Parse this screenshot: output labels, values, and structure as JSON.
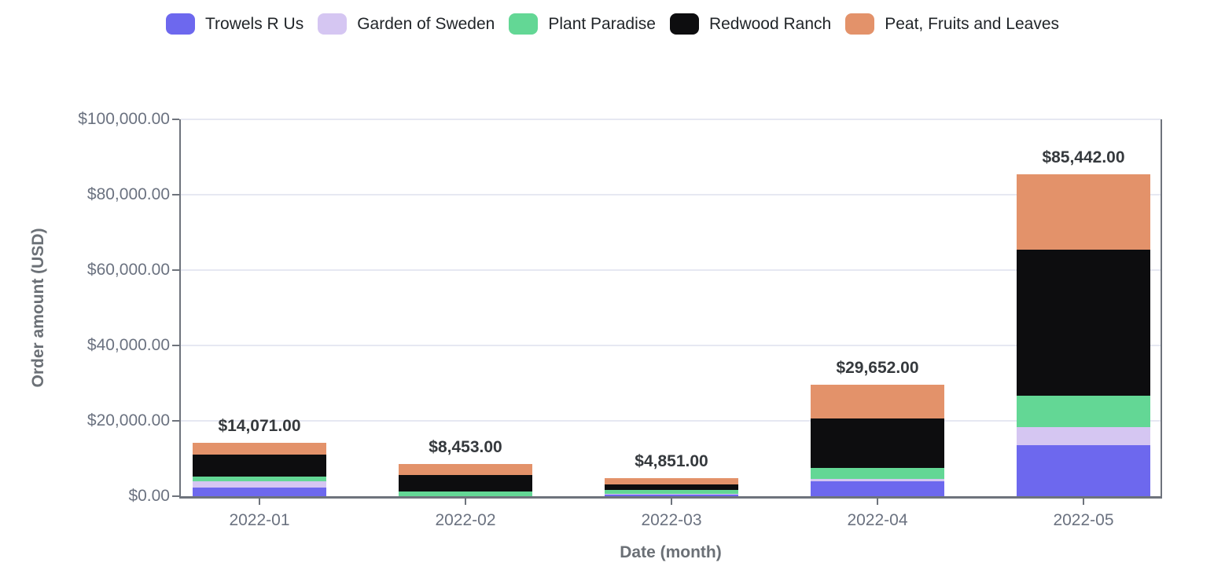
{
  "chart_data": {
    "type": "bar",
    "stacked": true,
    "xlabel": "Date (month)",
    "ylabel": "Order amount (USD)",
    "categories": [
      "2022-01",
      "2022-02",
      "2022-03",
      "2022-04",
      "2022-05"
    ],
    "series": [
      {
        "name": "Trowels R Us",
        "color": "#6d68ee",
        "values": [
          2260,
          0,
          500,
          4000,
          13500
        ]
      },
      {
        "name": "Garden of Sweden",
        "color": "#d5c6f2",
        "values": [
          1620,
          0,
          100,
          550,
          4800
        ]
      },
      {
        "name": "Plant Paradise",
        "color": "#63d795",
        "values": [
          1270,
          1353,
          1050,
          2900,
          8300
        ]
      },
      {
        "name": "Redwood Ranch",
        "color": "#0d0d0f",
        "values": [
          5971,
          4200,
          1480,
          13200,
          38900
        ]
      },
      {
        "name": "Peat, Fruits and Leaves",
        "color": "#e3926a",
        "values": [
          2950,
          2900,
          1721,
          9002,
          19942
        ]
      }
    ],
    "totals": [
      14071,
      8453,
      4851,
      29652,
      85442
    ],
    "total_labels": [
      "$14,071.00",
      "$8,453.00",
      "$4,851.00",
      "$29,652.00",
      "$85,442.00"
    ],
    "y_ticks": [
      {
        "value": 0,
        "label": "$0.00"
      },
      {
        "value": 20000,
        "label": "$20,000.00"
      },
      {
        "value": 40000,
        "label": "$40,000.00"
      },
      {
        "value": 60000,
        "label": "$60,000.00"
      },
      {
        "value": 80000,
        "label": "$80,000.00"
      },
      {
        "value": 100000,
        "label": "$100,000.00"
      }
    ],
    "ylim": [
      0,
      100000
    ],
    "grid": true,
    "legend_position": "top",
    "colors": {
      "axis": "#6e737c",
      "gridline": "#e6e8f2",
      "tick_label": "#6b7280",
      "axis_title": "#6b7076",
      "value_label": "#35393d",
      "legend_text": "#212529",
      "background": "#ffffff"
    }
  }
}
